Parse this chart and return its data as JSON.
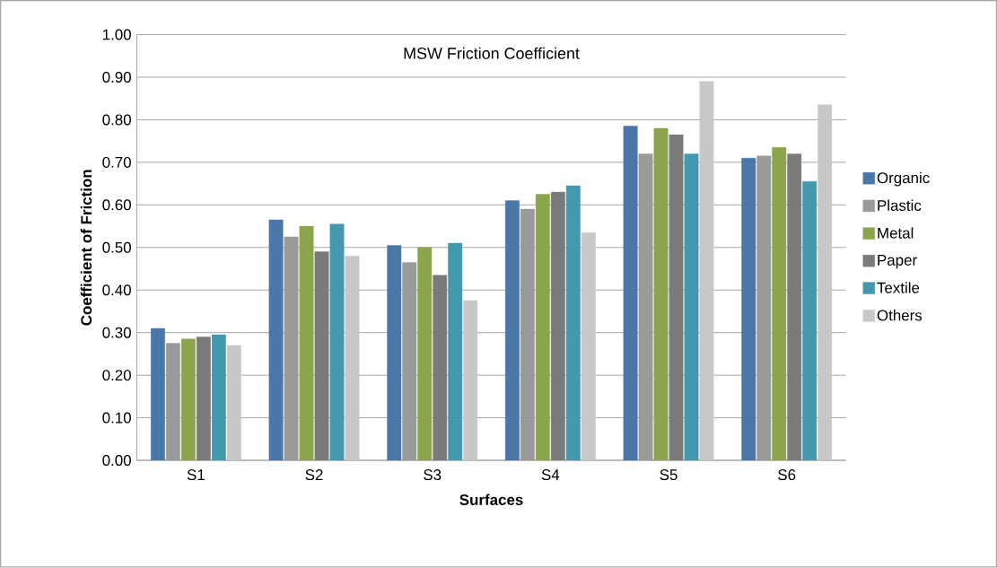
{
  "chart_data": {
    "type": "bar",
    "title": "MSW Friction Coefficient",
    "xlabel": "Surfaces",
    "ylabel": "Coefficient of Friction",
    "categories": [
      "S1",
      "S2",
      "S3",
      "S4",
      "S5",
      "S6"
    ],
    "series": [
      {
        "name": "Organic",
        "color": "#4a76a8",
        "values": [
          0.31,
          0.565,
          0.505,
          0.61,
          0.785,
          0.71
        ]
      },
      {
        "name": "Plastic",
        "color": "#9a9a9a",
        "values": [
          0.275,
          0.525,
          0.465,
          0.59,
          0.72,
          0.715
        ]
      },
      {
        "name": "Metal",
        "color": "#8ba54c",
        "values": [
          0.285,
          0.55,
          0.5,
          0.625,
          0.78,
          0.735
        ]
      },
      {
        "name": "Paper",
        "color": "#7a7a7a",
        "values": [
          0.29,
          0.49,
          0.435,
          0.63,
          0.765,
          0.72
        ]
      },
      {
        "name": "Textile",
        "color": "#4398ae",
        "values": [
          0.295,
          0.555,
          0.51,
          0.645,
          0.72,
          0.655
        ]
      },
      {
        "name": "Others",
        "color": "#c8c8c8",
        "values": [
          0.27,
          0.48,
          0.375,
          0.535,
          0.89,
          0.835
        ]
      }
    ],
    "ylim": [
      0,
      1.0
    ],
    "yticks": [
      {
        "value": 0,
        "label": "0.00"
      },
      {
        "value": 0.1,
        "label": "0.10"
      },
      {
        "value": 0.2,
        "label": "0.20"
      },
      {
        "value": 0.3,
        "label": "0.30"
      },
      {
        "value": 0.4,
        "label": "0.40"
      },
      {
        "value": 0.5,
        "label": "0.50"
      },
      {
        "value": 0.6,
        "label": "0.60"
      },
      {
        "value": 0.7,
        "label": "0.70"
      },
      {
        "value": 0.8,
        "label": "0.80"
      },
      {
        "value": 0.9,
        "label": "0.90"
      },
      {
        "value": 1.0,
        "label": "1.00"
      }
    ],
    "grid": "y",
    "legend": "right"
  }
}
